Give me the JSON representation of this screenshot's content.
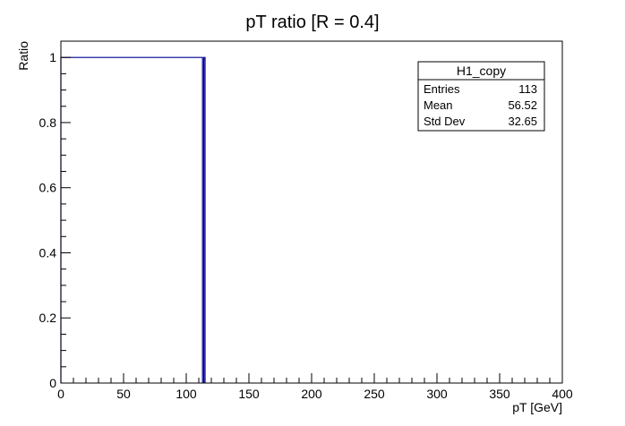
{
  "chart_data": {
    "type": "histogram",
    "title": "pT ratio [R = 0.4]",
    "xlabel": "pT [GeV]",
    "ylabel": "Ratio",
    "xlim": [
      0,
      400
    ],
    "ylim": [
      0,
      1.05
    ],
    "x_ticks": [
      0,
      50,
      100,
      150,
      200,
      250,
      300,
      350,
      400
    ],
    "y_ticks": [
      0,
      0.2,
      0.4,
      0.6,
      0.8,
      1
    ],
    "x_tick_labels": [
      "0",
      "50",
      "100",
      "150",
      "200",
      "250",
      "300",
      "350",
      "400"
    ],
    "y_tick_labels": [
      "0",
      "0.2",
      "0.4",
      "0.6",
      "0.8",
      "1"
    ],
    "bins": [
      {
        "x_low": 0,
        "x_high": 113,
        "value": 1
      },
      {
        "x_low": 113,
        "x_high": 114,
        "value": 0
      },
      {
        "x_low": 114,
        "x_high": 115,
        "value": 1
      },
      {
        "x_low": 115,
        "x_high": 400,
        "value": 0
      }
    ],
    "line_color": "#000099",
    "grid": false,
    "legend": "none"
  },
  "stats_box": {
    "title": "H1_copy",
    "rows": [
      {
        "label": "Entries",
        "value": "113"
      },
      {
        "label": "Mean",
        "value": "56.52"
      },
      {
        "label": "Std Dev",
        "value": "32.65"
      }
    ]
  }
}
